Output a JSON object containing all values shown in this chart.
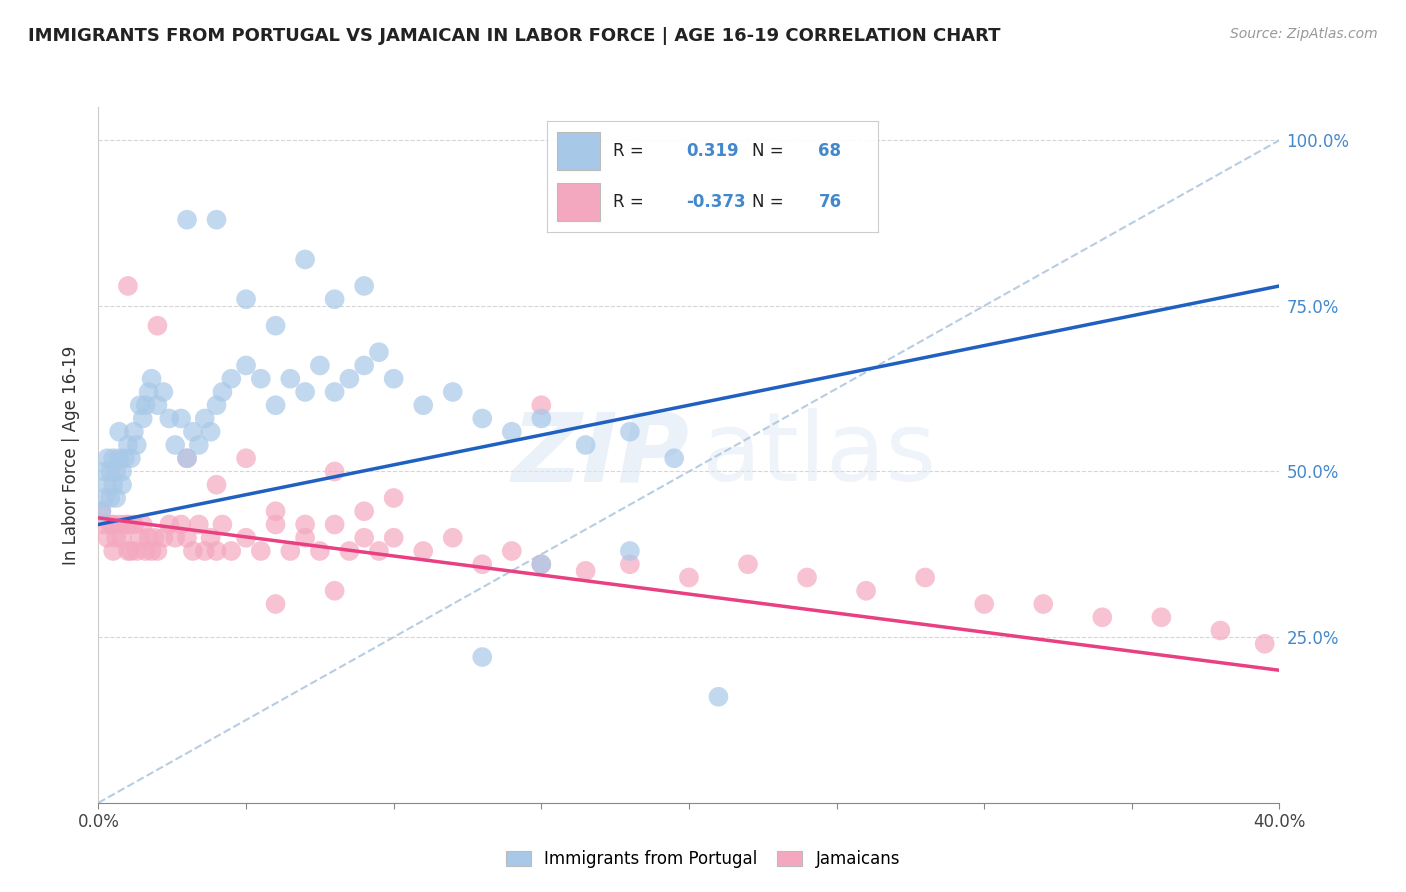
{
  "title": "IMMIGRANTS FROM PORTUGAL VS JAMAICAN IN LABOR FORCE | AGE 16-19 CORRELATION CHART",
  "source": "Source: ZipAtlas.com",
  "ylabel": "In Labor Force | Age 16-19",
  "portugal_R": 0.319,
  "portugal_N": 68,
  "jamaica_R": -0.373,
  "jamaica_N": 76,
  "portugal_color": "#a8c8e8",
  "jamaica_color": "#f4a8c0",
  "portugal_line_color": "#2060c0",
  "jamaica_line_color": "#e84080",
  "dashed_line_color": "#b0c8e0",
  "xlim": [
    0.0,
    0.4
  ],
  "ylim": [
    0.0,
    1.05
  ],
  "portugal_line_x0": 0.0,
  "portugal_line_y0": 0.42,
  "portugal_line_x1": 0.4,
  "portugal_line_y1": 0.78,
  "jamaica_line_x0": 0.0,
  "jamaica_line_y0": 0.43,
  "jamaica_line_x1": 0.4,
  "jamaica_line_y1": 0.2,
  "portugal_scatter_x": [
    0.001,
    0.002,
    0.002,
    0.003,
    0.003,
    0.004,
    0.004,
    0.005,
    0.005,
    0.006,
    0.006,
    0.007,
    0.007,
    0.008,
    0.008,
    0.009,
    0.01,
    0.011,
    0.012,
    0.013,
    0.014,
    0.015,
    0.016,
    0.017,
    0.018,
    0.02,
    0.022,
    0.024,
    0.026,
    0.028,
    0.03,
    0.032,
    0.034,
    0.036,
    0.038,
    0.04,
    0.042,
    0.045,
    0.05,
    0.055,
    0.06,
    0.065,
    0.07,
    0.075,
    0.08,
    0.085,
    0.09,
    0.095,
    0.1,
    0.11,
    0.12,
    0.13,
    0.14,
    0.15,
    0.165,
    0.18,
    0.195,
    0.03,
    0.04,
    0.05,
    0.06,
    0.07,
    0.08,
    0.09,
    0.15,
    0.18,
    0.21,
    0.13
  ],
  "portugal_scatter_y": [
    0.44,
    0.46,
    0.5,
    0.48,
    0.52,
    0.46,
    0.5,
    0.48,
    0.52,
    0.46,
    0.5,
    0.52,
    0.56,
    0.5,
    0.48,
    0.52,
    0.54,
    0.52,
    0.56,
    0.54,
    0.6,
    0.58,
    0.6,
    0.62,
    0.64,
    0.6,
    0.62,
    0.58,
    0.54,
    0.58,
    0.52,
    0.56,
    0.54,
    0.58,
    0.56,
    0.6,
    0.62,
    0.64,
    0.66,
    0.64,
    0.6,
    0.64,
    0.62,
    0.66,
    0.62,
    0.64,
    0.66,
    0.68,
    0.64,
    0.6,
    0.62,
    0.58,
    0.56,
    0.58,
    0.54,
    0.56,
    0.52,
    0.88,
    0.88,
    0.76,
    0.72,
    0.82,
    0.76,
    0.78,
    0.36,
    0.38,
    0.16,
    0.22
  ],
  "jamaica_scatter_x": [
    0.001,
    0.002,
    0.003,
    0.004,
    0.005,
    0.005,
    0.006,
    0.007,
    0.008,
    0.009,
    0.01,
    0.01,
    0.011,
    0.012,
    0.013,
    0.014,
    0.015,
    0.016,
    0.017,
    0.018,
    0.019,
    0.02,
    0.022,
    0.024,
    0.026,
    0.028,
    0.03,
    0.032,
    0.034,
    0.036,
    0.038,
    0.04,
    0.042,
    0.045,
    0.05,
    0.055,
    0.06,
    0.065,
    0.07,
    0.075,
    0.08,
    0.085,
    0.09,
    0.095,
    0.1,
    0.11,
    0.12,
    0.13,
    0.14,
    0.15,
    0.165,
    0.18,
    0.2,
    0.22,
    0.24,
    0.26,
    0.28,
    0.3,
    0.32,
    0.34,
    0.36,
    0.38,
    0.395,
    0.01,
    0.02,
    0.03,
    0.04,
    0.05,
    0.06,
    0.07,
    0.08,
    0.09,
    0.1,
    0.15,
    0.06,
    0.08
  ],
  "jamaica_scatter_y": [
    0.44,
    0.42,
    0.4,
    0.42,
    0.38,
    0.42,
    0.4,
    0.42,
    0.4,
    0.42,
    0.38,
    0.42,
    0.38,
    0.42,
    0.38,
    0.4,
    0.42,
    0.38,
    0.4,
    0.38,
    0.4,
    0.38,
    0.4,
    0.42,
    0.4,
    0.42,
    0.4,
    0.38,
    0.42,
    0.38,
    0.4,
    0.38,
    0.42,
    0.38,
    0.4,
    0.38,
    0.42,
    0.38,
    0.4,
    0.38,
    0.42,
    0.38,
    0.4,
    0.38,
    0.4,
    0.38,
    0.4,
    0.36,
    0.38,
    0.36,
    0.35,
    0.36,
    0.34,
    0.36,
    0.34,
    0.32,
    0.34,
    0.3,
    0.3,
    0.28,
    0.28,
    0.26,
    0.24,
    0.78,
    0.72,
    0.52,
    0.48,
    0.52,
    0.44,
    0.42,
    0.5,
    0.44,
    0.46,
    0.6,
    0.3,
    0.32
  ]
}
